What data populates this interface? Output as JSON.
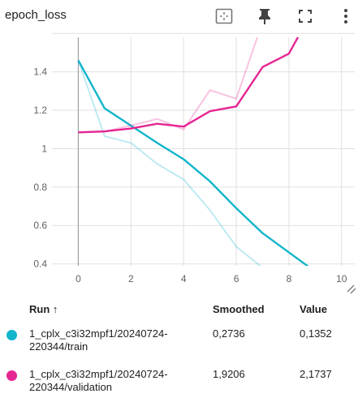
{
  "header": {
    "title": "epoch_loss",
    "icons": [
      "fit-domain-icon",
      "pin-icon",
      "fullscreen-icon",
      "more-vert-icon"
    ]
  },
  "table": {
    "col_run": "Run ↑",
    "col_smoothed": "Smoothed",
    "col_value": "Value",
    "rows": [
      {
        "run_line1": "1_cplx_c3i32mpf1/20240724-",
        "run_line2": "220344/train",
        "smoothed": "0,2736",
        "value": "0,1352",
        "color": "#12b5cb"
      },
      {
        "run_line1": "1_cplx_c3i32mpf1/20240724-",
        "run_line2": "220344/validation",
        "smoothed": "1,9206",
        "value": "2,1737",
        "color": "#e52592"
      }
    ]
  },
  "chart_data": {
    "type": "line",
    "title": "epoch_loss",
    "xlabel": "",
    "ylabel": "",
    "xlim": [
      -1,
      10.5
    ],
    "ylim": [
      0.39,
      1.58
    ],
    "x_ticks": [
      "0",
      "2",
      "4",
      "6",
      "8",
      "10"
    ],
    "y_ticks": [
      "0.4",
      "0.6",
      "0.8",
      "1",
      "1.2",
      "1.4",
      "1.6"
    ],
    "grid": true,
    "series": [
      {
        "name": "1_cplx_c3i32mpf1/20240724-220344/train",
        "kind": "raw",
        "color": "#12b5cb",
        "x": [
          0,
          1,
          2,
          3,
          4,
          5,
          6,
          7
        ],
        "y": [
          1.46,
          1.065,
          1.03,
          0.92,
          0.84,
          0.68,
          0.49,
          0.38
        ]
      },
      {
        "name": "1_cplx_c3i32mpf1/20240724-220344/train",
        "kind": "smoothed",
        "color": "#12b5cb",
        "x": [
          0,
          1,
          2,
          3,
          4,
          5,
          6,
          7,
          8,
          9
        ],
        "y": [
          1.46,
          1.21,
          1.12,
          1.03,
          0.945,
          0.83,
          0.69,
          0.56,
          0.46,
          0.36
        ]
      },
      {
        "name": "1_cplx_c3i32mpf1/20240724-220344/validation",
        "kind": "raw",
        "color": "#e52592",
        "x": [
          0,
          1,
          2,
          3,
          4,
          5,
          6,
          7
        ],
        "y": [
          1.085,
          1.09,
          1.12,
          1.155,
          1.1,
          1.305,
          1.26,
          1.66
        ]
      },
      {
        "name": "1_cplx_c3i32mpf1/20240724-220344/validation",
        "kind": "smoothed",
        "color": "#e52592",
        "x": [
          0,
          1,
          2,
          3,
          4,
          5,
          6,
          7,
          8,
          8.5
        ],
        "y": [
          1.085,
          1.09,
          1.105,
          1.13,
          1.115,
          1.195,
          1.22,
          1.425,
          1.495,
          1.62
        ]
      }
    ]
  }
}
